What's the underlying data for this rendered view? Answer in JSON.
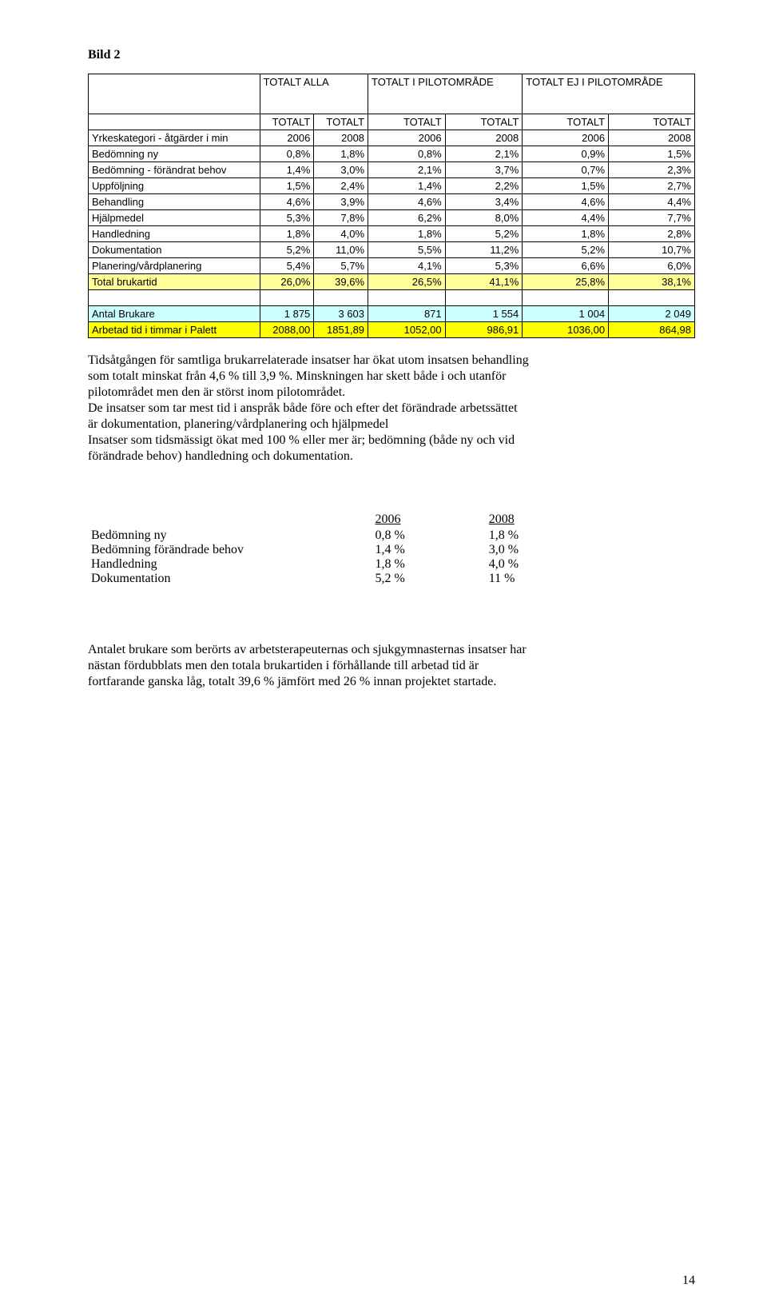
{
  "title": "Bild 2",
  "table1": {
    "col_headers_top": [
      "",
      "TOTALT ALLA",
      "TOTALT I PILOTOMRÅDE",
      "TOTALT EJ I PILOTOMRÅDE"
    ],
    "col_headers_sub": [
      "TOTALT",
      "TOTALT",
      "TOTALT",
      "TOTALT",
      "TOTALT",
      "TOTALT"
    ],
    "year_row_label": "Yrkeskategori - åtgärder i min",
    "years": [
      "2006",
      "2008",
      "2006",
      "2008",
      "2006",
      "2008"
    ],
    "rows": [
      {
        "label": "Bedömning  ny",
        "v": [
          "0,8%",
          "1,8%",
          "0,8%",
          "2,1%",
          "0,9%",
          "1,5%"
        ]
      },
      {
        "label": "Bedömning - förändrat behov",
        "v": [
          "1,4%",
          "3,0%",
          "2,1%",
          "3,7%",
          "0,7%",
          "2,3%"
        ]
      },
      {
        "label": "Uppföljning",
        "v": [
          "1,5%",
          "2,4%",
          "1,4%",
          "2,2%",
          "1,5%",
          "2,7%"
        ]
      },
      {
        "label": "Behandling",
        "v": [
          "4,6%",
          "3,9%",
          "4,6%",
          "3,4%",
          "4,6%",
          "4,4%"
        ]
      },
      {
        "label": "Hjälpmedel",
        "v": [
          "5,3%",
          "7,8%",
          "6,2%",
          "8,0%",
          "4,4%",
          "7,7%"
        ]
      },
      {
        "label": "Handledning",
        "v": [
          "1,8%",
          "4,0%",
          "1,8%",
          "5,2%",
          "1,8%",
          "2,8%"
        ]
      },
      {
        "label": "Dokumentation",
        "v": [
          "5,2%",
          "11,0%",
          "5,5%",
          "11,2%",
          "5,2%",
          "10,7%"
        ]
      },
      {
        "label": "Planering/vårdplanering",
        "v": [
          "5,4%",
          "5,7%",
          "4,1%",
          "5,3%",
          "6,6%",
          "6,0%"
        ]
      }
    ],
    "total_row": {
      "label": "Total brukartid",
      "v": [
        "26,0%",
        "39,6%",
        "26,5%",
        "41,1%",
        "25,8%",
        "38,1%"
      ]
    },
    "brukare_row": {
      "label": "Antal Brukare",
      "v": [
        "1 875",
        "3 603",
        "871",
        "1 554",
        "1 004",
        "2 049"
      ]
    },
    "arbetad_row": {
      "label": "Arbetad tid i timmar i Palett",
      "v": [
        "2088,00",
        "1851,89",
        "1052,00",
        "986,91",
        "1036,00",
        "864,98"
      ]
    },
    "colors": {
      "total_bg": "#ffff99",
      "brukare_bg": "#ccffff",
      "arbetad_bg": "#ffff00",
      "border": "#000000"
    }
  },
  "paragraph1_lines": [
    "Tidsåtgången för samtliga brukarrelaterade insatser har ökat utom insatsen behandling",
    "som totalt minskat från 4,6 % till 3,9 %. Minskningen har skett både i och utanför",
    "pilotområdet men den är störst inom pilotområdet.",
    "De insatser som tar mest tid i anspråk både före och efter det förändrade arbetssättet",
    "är dokumentation, planering/vårdplanering och hjälpmedel",
    "Insatser som tidsmässigt ökat med 100 % eller mer är; bedömning (både ny och vid",
    "förändrade behov) handledning och dokumentation."
  ],
  "stats": {
    "years": [
      "2006",
      "2008"
    ],
    "rows": [
      {
        "label": "Bedömning   ny",
        "a": "0,8 %",
        "b": "1,8 %"
      },
      {
        "label": "Bedömning förändrade behov",
        "a": "1,4 %",
        "b": "3,0 %"
      },
      {
        "label": "Handledning",
        "a": "1,8 %",
        "b": "4,0 %"
      },
      {
        "label": "Dokumentation",
        "a": "5,2 %",
        "b": "11 %"
      }
    ]
  },
  "paragraph2_lines": [
    "Antalet brukare som berörts av arbetsterapeuternas och sjukgymnasternas insatser har",
    "nästan fördubblats men den totala brukartiden i förhållande till arbetad tid är",
    "fortfarande ganska låg, totalt 39,6 % jämfört med 26 % innan projektet startade."
  ],
  "page_number": "14"
}
